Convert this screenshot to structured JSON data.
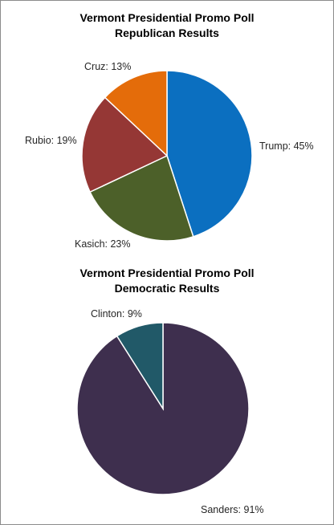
{
  "chart_data": [
    {
      "type": "pie",
      "title_line1": "Vermont Presidential Promo Poll",
      "title_line2": "Republican Results",
      "slices": [
        {
          "label": "Trump",
          "value": 45,
          "display": "Trump: 45%",
          "color": "#0b6fc0"
        },
        {
          "label": "Kasich",
          "value": 23,
          "display": "Kasich: 23%",
          "color": "#4c6029"
        },
        {
          "label": "Rubio",
          "value": 19,
          "display": "Rubio: 19%",
          "color": "#953735"
        },
        {
          "label": "Cruz",
          "value": 13,
          "display": "Cruz: 13%",
          "color": "#e46c0a"
        }
      ]
    },
    {
      "type": "pie",
      "title_line1": "Vermont Presidential Promo Poll",
      "title_line2": "Democratic Results",
      "slices": [
        {
          "label": "Sanders",
          "value": 91,
          "display": "Sanders: 91%",
          "color": "#3e2f4e"
        },
        {
          "label": "Clinton",
          "value": 9,
          "display": "Clinton: 9%",
          "color": "#215968"
        }
      ]
    }
  ]
}
